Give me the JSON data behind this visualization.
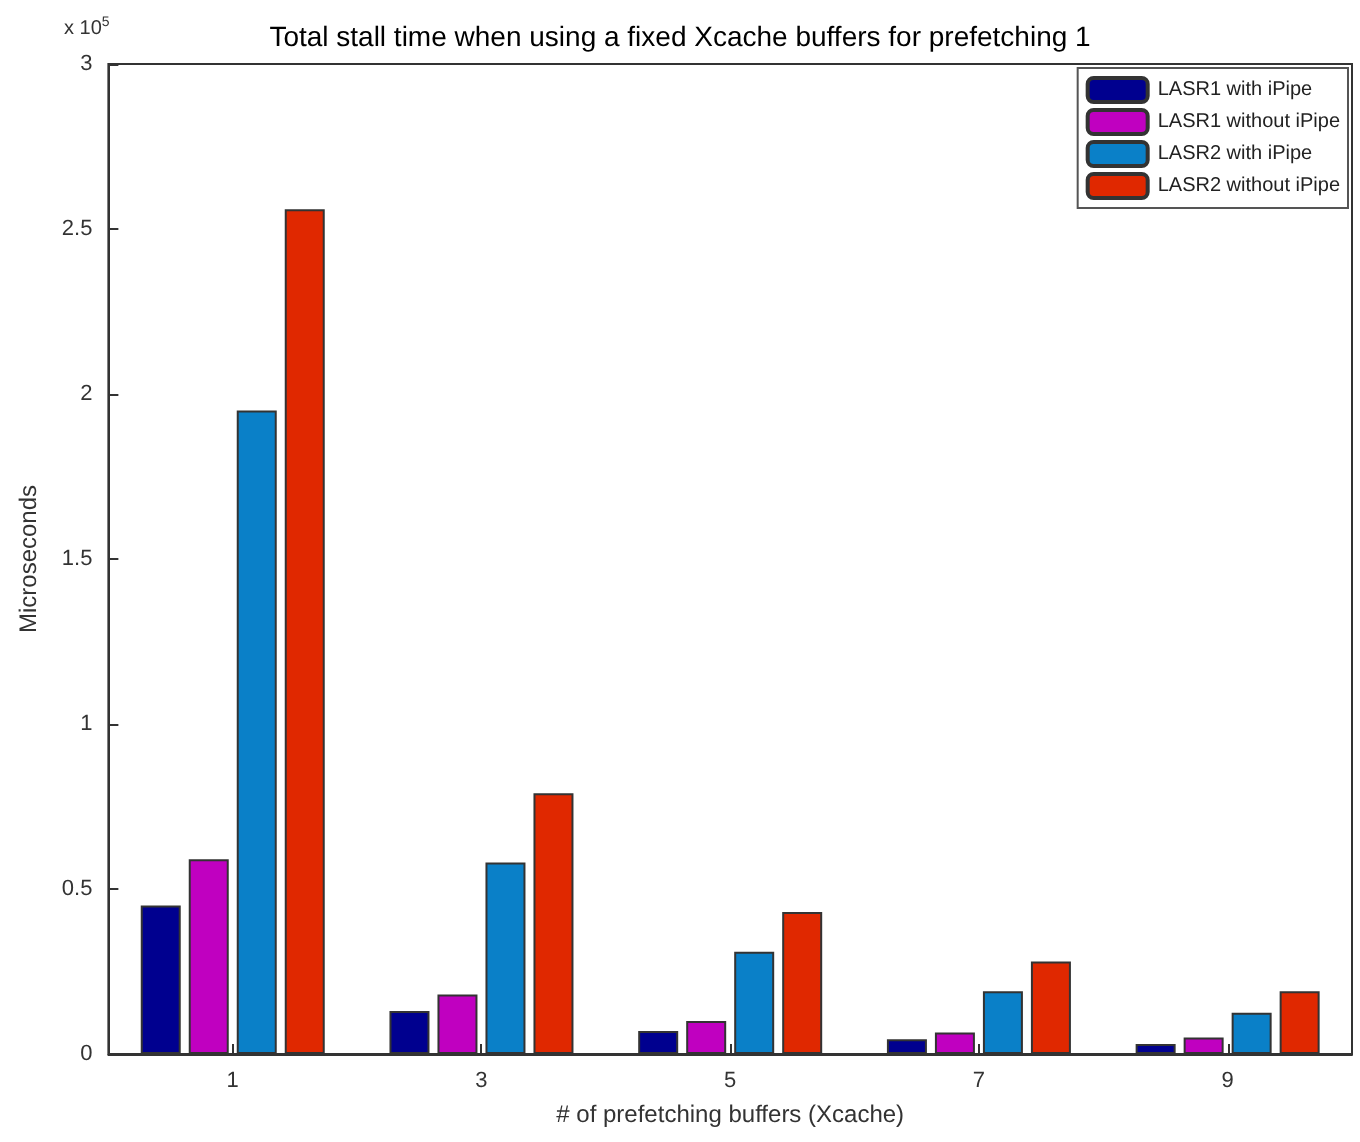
{
  "chart_data": {
    "type": "bar",
    "title": "Total stall time when using a fixed Xcache buffers for prefetching 1",
    "xlabel": "# of prefetching buffers (Xcache)",
    "ylabel": "Microseconds",
    "annotations": [
      "x 10$^{5}$"
    ],
    "categories": [
      "1",
      "3",
      "5",
      "7",
      "9"
    ],
    "series": [
      {
        "name": "LASR1 with iPipe",
        "color": "#00008f",
        "values": [
          0.45,
          0.13,
          0.07,
          0.045,
          0.03
        ]
      },
      {
        "name": "LASR1 without iPipe",
        "color": "#c000c0",
        "values": [
          0.59,
          0.18,
          0.1,
          0.065,
          0.05
        ]
      },
      {
        "name": "LASR2 with iPipe",
        "color": "#0a80c8",
        "values": [
          1.95,
          0.58,
          0.31,
          0.19,
          0.125
        ]
      },
      {
        "name": "LASR2 without iPipe",
        "color": "#e02800",
        "values": [
          2.56,
          0.79,
          0.43,
          0.28,
          0.19
        ]
      }
    ],
    "ylim": [
      0,
      3
    ],
    "yticks": [
      0,
      0.5,
      1,
      1.5,
      2,
      2.5,
      3
    ],
    "grid": false,
    "legend": "top right"
  }
}
